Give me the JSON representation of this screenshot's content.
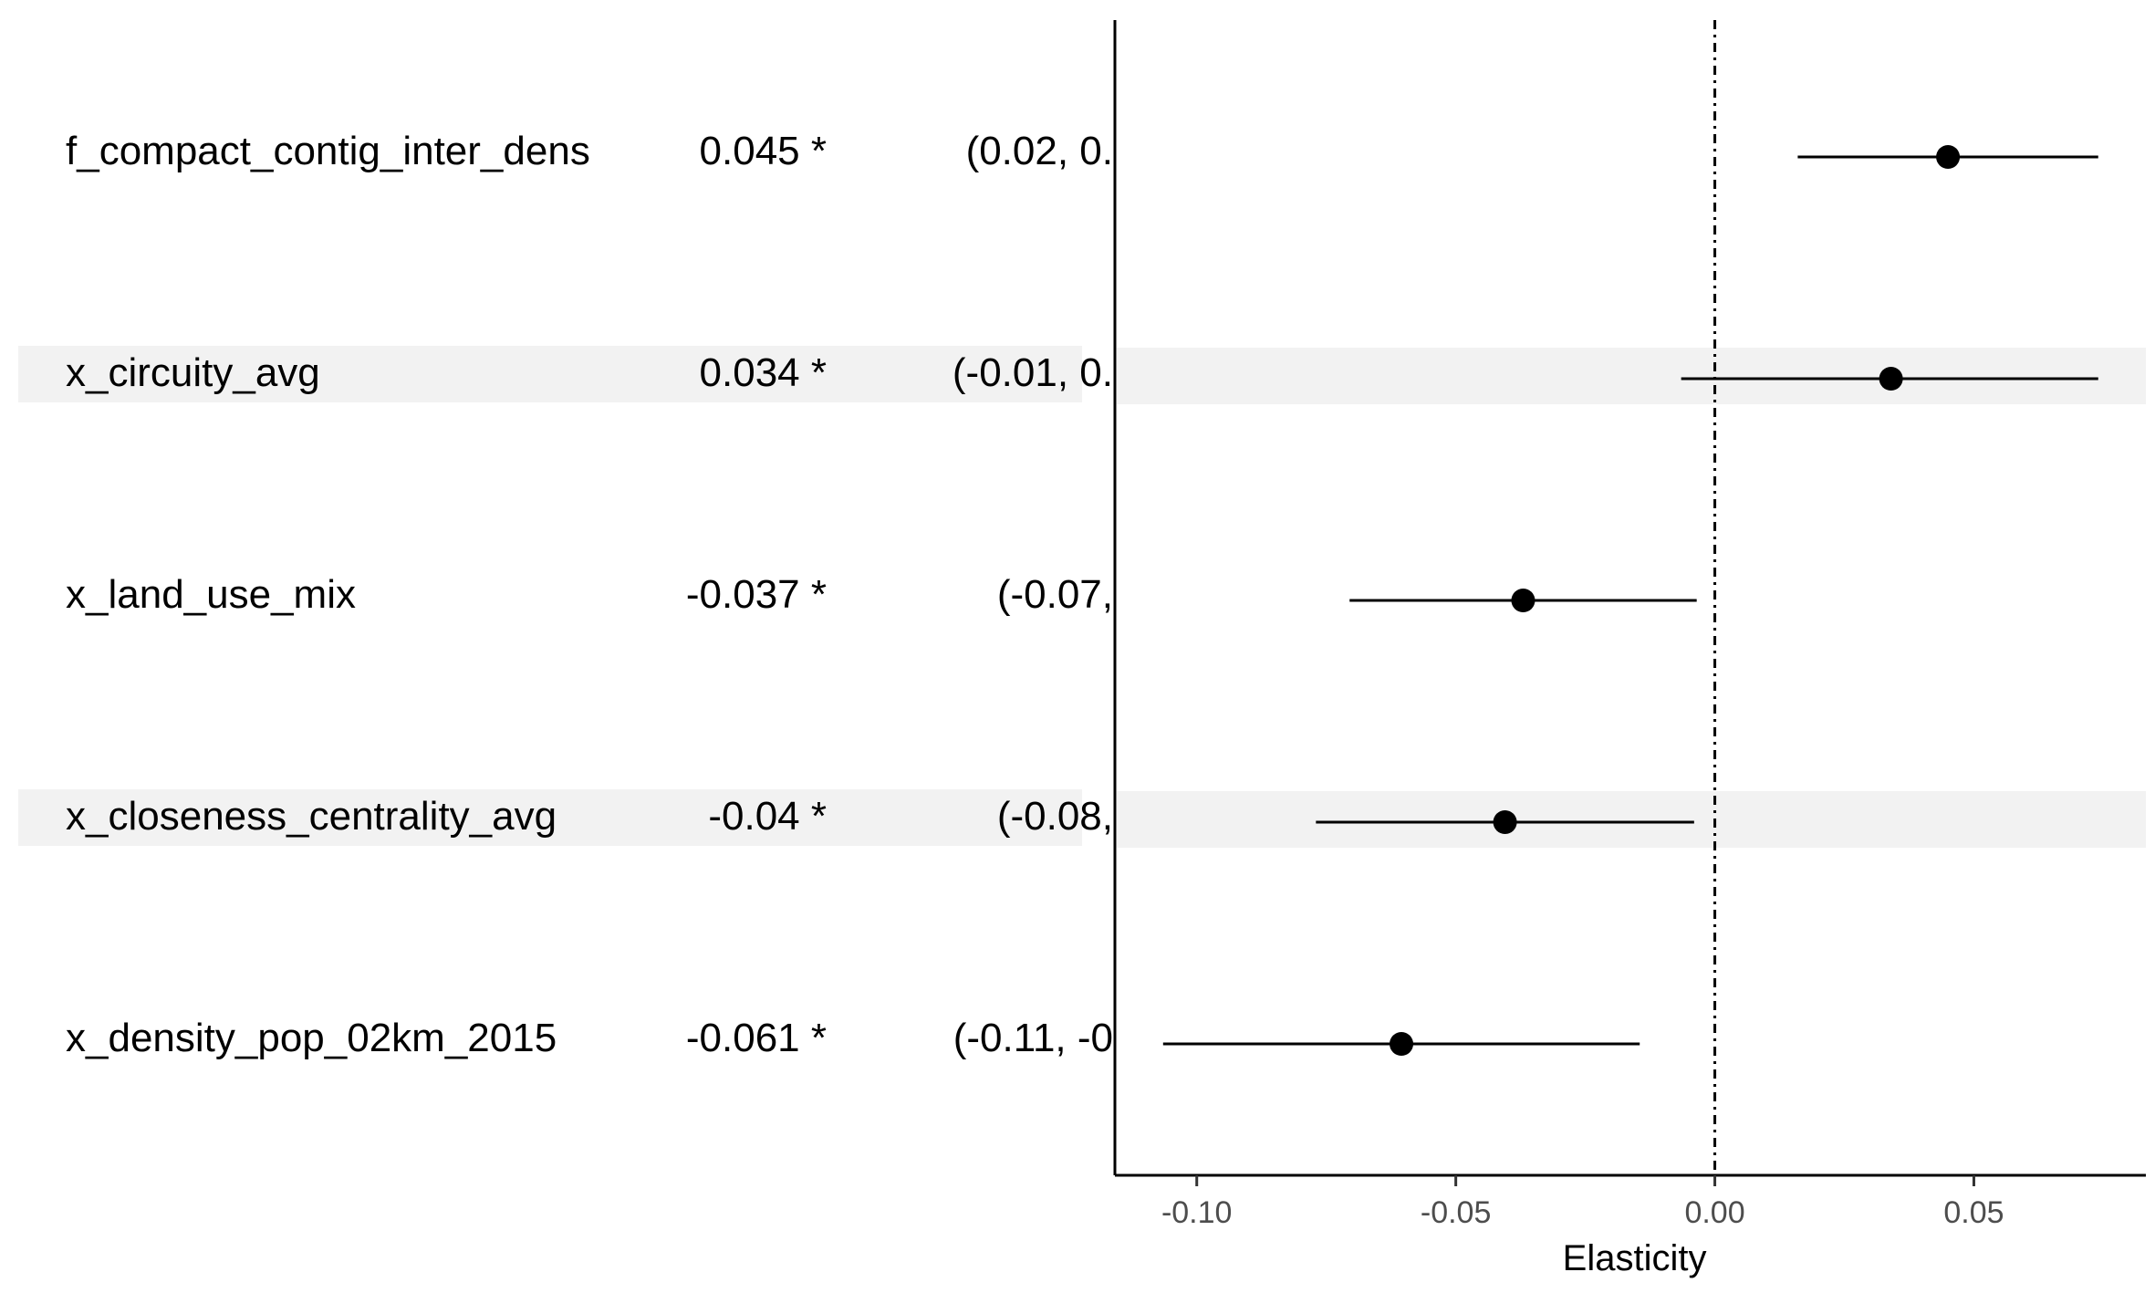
{
  "chart_data": {
    "type": "scatter",
    "subtype": "forest-plot",
    "title": "",
    "xlabel": "Elasticity",
    "ylabel": "",
    "xlim": [
      -0.1158,
      0.0832
    ],
    "x_ticks": [
      -0.1,
      -0.05,
      0.0,
      0.05
    ],
    "x_tick_labels": [
      "-0.10",
      "-0.05",
      "0.00",
      "0.05"
    ],
    "reference_line": {
      "x": 0,
      "style": "dot-dash"
    },
    "grid": false,
    "legend": "none",
    "rows": [
      {
        "variable": "f_compact_contig_inter_dens",
        "estimate_label": "0.045 *",
        "ci_label": "(0.02, 0.",
        "estimate": 0.045,
        "ci_low": 0.016,
        "ci_high": 0.074,
        "shaded": false
      },
      {
        "variable": "x_circuity_avg",
        "estimate_label": "0.034 *",
        "ci_label": "(-0.01, 0.",
        "estimate": 0.034,
        "ci_low": -0.0065,
        "ci_high": 0.074,
        "shaded": true
      },
      {
        "variable": "x_land_use_mix",
        "estimate_label": "-0.037 *",
        "ci_label": "(-0.07,",
        "estimate": -0.037,
        "ci_low": -0.0705,
        "ci_high": -0.0035,
        "shaded": false
      },
      {
        "variable": "x_closeness_centrality_avg",
        "estimate_label": "-0.04 *",
        "ci_label": "(-0.08,",
        "estimate": -0.0405,
        "ci_low": -0.077,
        "ci_high": -0.004,
        "shaded": true
      },
      {
        "variable": "x_density_pop_02km_2015",
        "estimate_label": "-0.061 *",
        "ci_label": "(-0.11, -0",
        "estimate": -0.0605,
        "ci_low": -0.1065,
        "ci_high": -0.0145,
        "shaded": false
      }
    ],
    "colors": {
      "point": "#000000",
      "shade": "#f2f2f2",
      "axis": "#000000",
      "tick_label": "#4d4d4d"
    }
  }
}
